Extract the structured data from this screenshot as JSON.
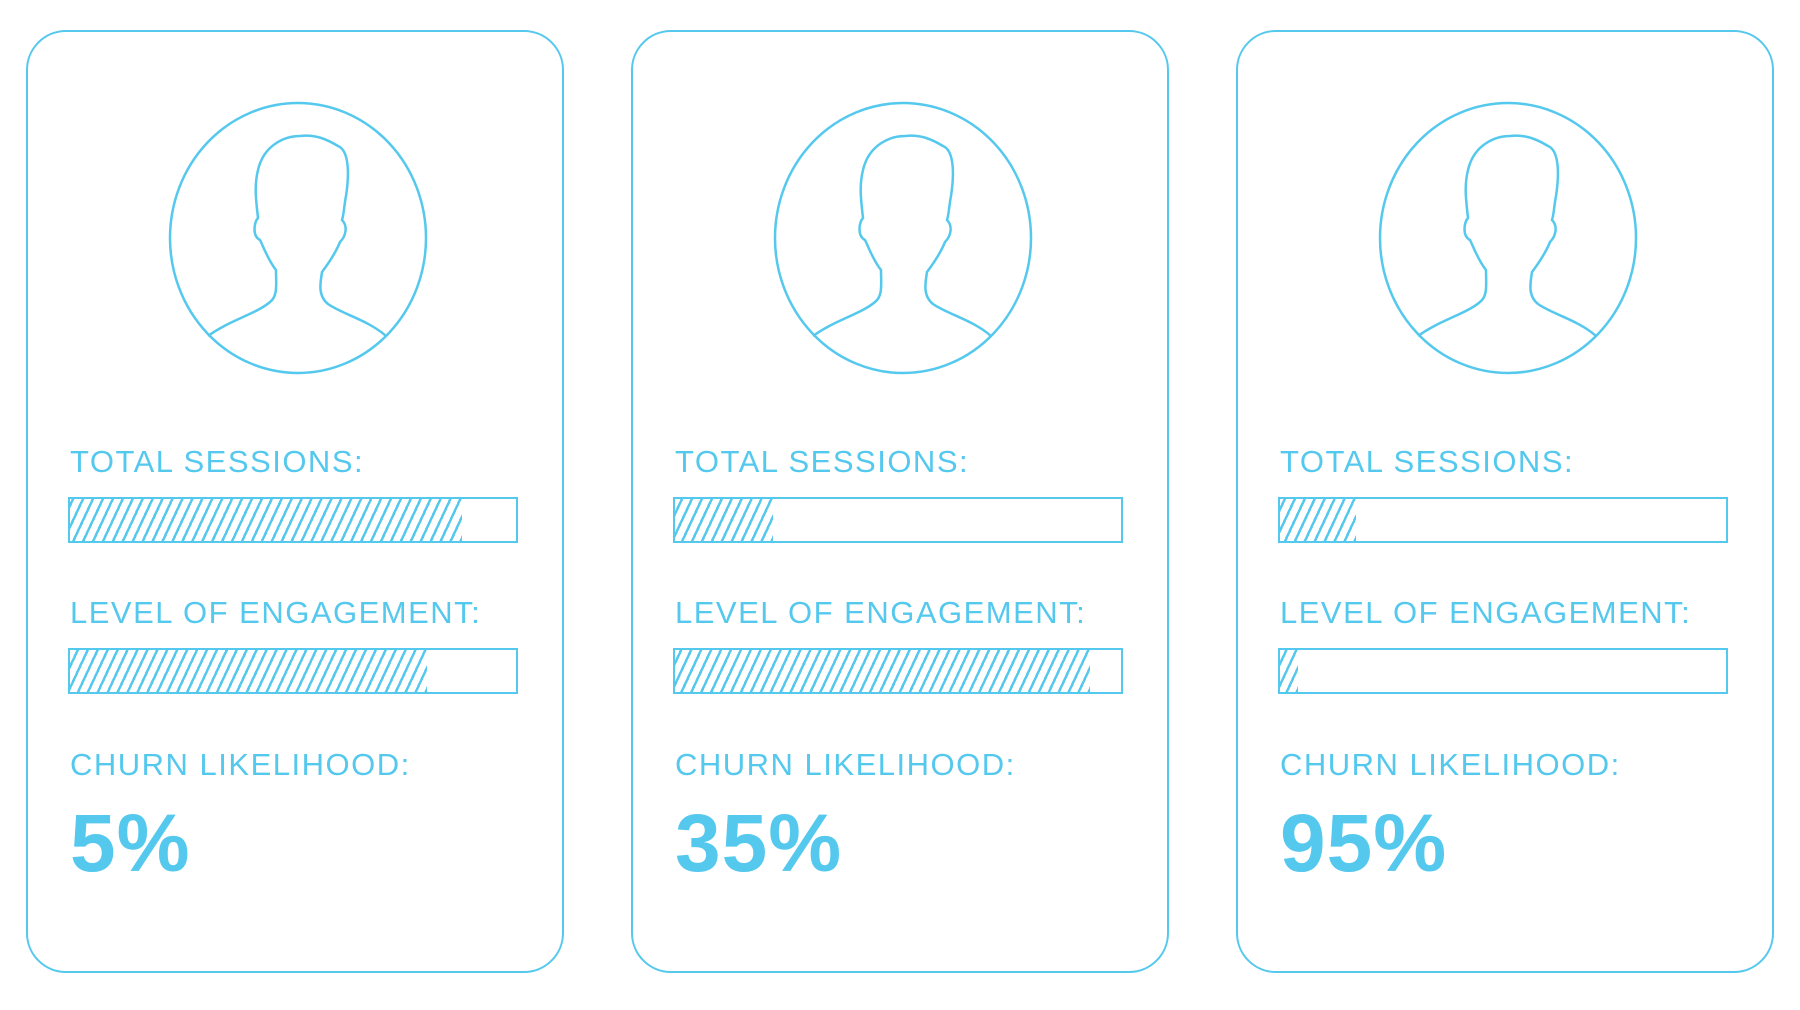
{
  "accent_color": "#55c8ee",
  "labels": {
    "total_sessions": "TOTAL SESSIONS:",
    "level_of_engagement": "LEVEL OF ENGAGEMENT:",
    "churn_likelihood": "CHURN LIKELIHOOD:"
  },
  "cards": [
    {
      "avatar_icon": "user-silhouette-icon",
      "total_sessions_level": 0.88,
      "engagement_level": 0.8,
      "churn": "5%"
    },
    {
      "avatar_icon": "user-silhouette-icon",
      "total_sessions_level": 0.22,
      "engagement_level": 0.93,
      "churn": "35%"
    },
    {
      "avatar_icon": "user-silhouette-icon",
      "total_sessions_level": 0.17,
      "engagement_level": 0.04,
      "churn": "95%"
    }
  ]
}
